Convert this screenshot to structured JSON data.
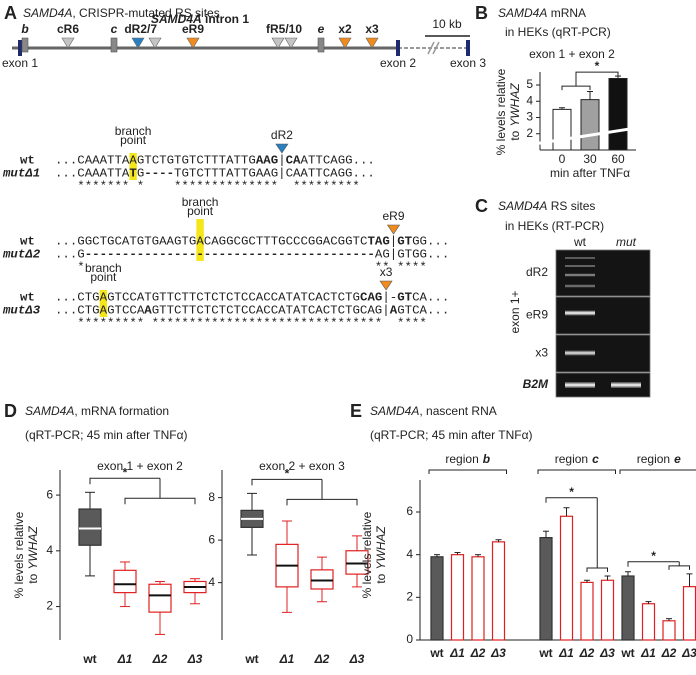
{
  "panel_a": {
    "letter": "A",
    "title_gene": "SAMD4A",
    "title_rest": ", CRISPR-mutated RS sites",
    "intron_gene": "SAMD4A",
    "intron_rest": " intron 1",
    "scale": "10 kb",
    "exons": [
      "exon 1",
      "exon 2",
      "exon 3"
    ],
    "sites": [
      {
        "label": "b",
        "color": "#888888",
        "label_color": "#222222"
      },
      {
        "label": "cR6",
        "color": "#c4c4c4",
        "label_color": "#a8a8a8"
      },
      {
        "label": "c",
        "color": "#888888",
        "label_color": "#222222"
      },
      {
        "label": "dR2",
        "color": "#2a7fc0",
        "label_color": "#222222"
      },
      {
        "label": "/7",
        "color": "#c4c4c4",
        "label_color": "#a8a8a8"
      },
      {
        "label": "eR9",
        "color": "#f08c1e",
        "label_color": "#222222"
      },
      {
        "label": "fR5/10",
        "color": "#c4c4c4",
        "label_color": "#a8a8a8"
      },
      {
        "label": "e",
        "color": "#888888",
        "label_color": "#222222"
      },
      {
        "label": "x2",
        "color": "#f08c1e",
        "label_color": "#222222"
      },
      {
        "label": "x3",
        "color": "#f08c1e",
        "label_color": "#222222"
      }
    ],
    "alignments": [
      {
        "site": "dR2",
        "site_color": "#2a7fc0",
        "branch": [
          "branch",
          "point"
        ],
        "wt_label": "wt",
        "mut_label": "mutΔ1",
        "wt": [
          {
            "text": "...CAAATTA"
          },
          {
            "text": "A",
            "highlight": true
          },
          {
            "text": "GTCTGTGTCTTTATTG"
          },
          {
            "text": "AAG",
            "color": "#e0208f"
          },
          {
            "text": "|"
          },
          {
            "text": "CA",
            "color": "#1aa0d8"
          },
          {
            "text": "ATTCAGG..."
          }
        ],
        "mut": [
          {
            "text": "...CAAATTA"
          },
          {
            "text": "T",
            "highlight": true,
            "color": "#e02020"
          },
          {
            "text": "G"
          },
          {
            "text": "----",
            "color": "#e02020"
          },
          {
            "text": "TGTCTTTATTGAAG|CAATTCAGG..."
          }
        ],
        "stars": "   ******* *    **************  *********"
      },
      {
        "site": "eR9",
        "site_color": "#f08c1e",
        "branch": [
          "branch",
          "point"
        ],
        "wt_label": "wt",
        "mut_label": "mutΔ2",
        "wt": [
          {
            "text": "...GGCTGCATGTGAAGTG"
          },
          {
            "text": "A",
            "highlight": true
          },
          {
            "text": "CAGGCGCTTTGCCCGGACGGTC"
          },
          {
            "text": "TAG",
            "color": "#e0208f"
          },
          {
            "text": "|"
          },
          {
            "text": "GT",
            "color": "#f08c1e"
          },
          {
            "text": "GG..."
          }
        ],
        "mut": [
          {
            "text": "...G"
          },
          {
            "text": "---------------",
            "color": "#e02020"
          },
          {
            "text": "-",
            "highlight": true,
            "color": "#e02020"
          },
          {
            "text": "-----------------------",
            "color": "#e02020"
          },
          {
            "text": "AG|GTGG..."
          }
        ],
        "stars": "   *                                       ** ****"
      },
      {
        "site": "x3",
        "site_color": "#f08c1e",
        "branch": [
          "branch",
          "point"
        ],
        "wt_label": "wt",
        "mut_label": "mutΔ3",
        "wt": [
          {
            "text": "...CTG"
          },
          {
            "text": "A",
            "highlight": true
          },
          {
            "text": "GTCCATGTTCTTCTCTCTCCACCATATCACTCTG"
          },
          {
            "text": "CAG",
            "color": "#e0208f"
          },
          {
            "text": "|"
          },
          {
            "text": "-"
          },
          {
            "text": "GT",
            "color": "#f08c1e"
          },
          {
            "text": "CA..."
          }
        ],
        "mut": [
          {
            "text": "...CTG"
          },
          {
            "text": "A",
            "highlight": true
          },
          {
            "text": "GTCCA"
          },
          {
            "text": "A",
            "color": "#e02020"
          },
          {
            "text": "GTTCTTCTCTCTCCACCATATCACTCTGCAG|"
          },
          {
            "text": "A",
            "color": "#e02020"
          },
          {
            "text": "GTCA..."
          }
        ],
        "stars": "   ********* *******************************  ****"
      }
    ]
  },
  "panel_c": {
    "letter": "C",
    "title_gene": "SAMD4A",
    "title_1": " RS sites",
    "title_2": "in HEKs (RT-PCR)",
    "lanes": [
      "wt",
      "mut"
    ],
    "rows": [
      "dR2",
      "eR9",
      "x3",
      "B2M"
    ],
    "side_label": "exon 1+"
  },
  "chart_data": [
    {
      "type": "bar",
      "letter": "B",
      "title_gene": "SAMD4A",
      "title_1": " mRNA",
      "title_2": "in HEKs (qRT-PCR)",
      "subtitle": "exon 1 + exon 2",
      "ylabel": [
        "% levels relative",
        "to",
        "YWHAZ"
      ],
      "xlabel": "min after TNFα",
      "categories": [
        "0",
        "30",
        "60"
      ],
      "values": [
        3.5,
        4.1,
        5.4
      ],
      "errors": [
        0.1,
        0.5,
        0.15
      ],
      "colors": [
        "#ffffff",
        "#a0a0a0",
        "#111111"
      ],
      "ylim": [
        1,
        5.8
      ],
      "yticks": [
        2,
        3,
        4,
        5
      ],
      "annotation": "*"
    },
    {
      "type": "box",
      "letter": "D",
      "title_gene": "SAMD4A",
      "title_1": ", mRNA formation",
      "title_2": "(qRT-PCR; 45 min after TNFα)",
      "subtitle": "exon 1 + exon 2",
      "ylabel": [
        "% levels relative",
        "to",
        "YWHAZ"
      ],
      "categories": [
        "wt",
        "Δ1",
        "Δ2",
        "Δ3"
      ],
      "boxes": [
        [
          3.1,
          4.2,
          4.8,
          5.5,
          6.1
        ],
        [
          2.0,
          2.5,
          2.8,
          3.3,
          3.6
        ],
        [
          1.0,
          1.8,
          2.4,
          2.8,
          2.9
        ],
        [
          2.1,
          2.5,
          2.7,
          2.9,
          3.0
        ]
      ],
      "colors": [
        "#5a5a5a",
        "#e02020",
        "#e02020",
        "#e02020"
      ],
      "filled": [
        true,
        false,
        false,
        false
      ],
      "median_colors": [
        "#ffffff",
        "#111111",
        "#111111",
        "#111111"
      ],
      "ylim": [
        0.8,
        6.9
      ],
      "yticks": [
        2,
        4,
        6
      ],
      "annotation": "*"
    },
    {
      "type": "box",
      "subtitle": "exon 2 + exon 3",
      "categories": [
        "wt",
        "Δ1",
        "Δ2",
        "Δ3"
      ],
      "boxes": [
        [
          5.3,
          6.6,
          7.0,
          7.4,
          8.2
        ],
        [
          2.6,
          3.8,
          4.8,
          5.8,
          6.9
        ],
        [
          3.1,
          3.7,
          4.1,
          4.6,
          5.2
        ],
        [
          3.8,
          4.4,
          4.9,
          5.5,
          6.2
        ]
      ],
      "colors": [
        "#5a5a5a",
        "#e02020",
        "#e02020",
        "#e02020"
      ],
      "filled": [
        true,
        false,
        false,
        false
      ],
      "median_colors": [
        "#ffffff",
        "#111111",
        "#111111",
        "#111111"
      ],
      "ylim": [
        1.3,
        9.3
      ],
      "yticks": [
        4,
        6,
        8
      ],
      "annotation": "*"
    },
    {
      "type": "grouped_bar",
      "letter": "E",
      "title_gene": "SAMD4A",
      "title_1": ", nascent RNA",
      "title_2": "(qRT-PCR; 45 min after TNFα)",
      "ylabel": [
        "% levels relative",
        "to",
        "YWHAZ"
      ],
      "categories": [
        "wt",
        "Δ1",
        "Δ2",
        "Δ3"
      ],
      "colors": [
        "#5a5a5a",
        "#e02020",
        "#e02020",
        "#e02020"
      ],
      "filled": [
        true,
        false,
        false,
        false
      ],
      "groups": [
        {
          "label": "region",
          "id": "b",
          "values": [
            3.9,
            4.0,
            3.9,
            4.6
          ],
          "errors": [
            0.1,
            0.1,
            0.1,
            0.1
          ]
        },
        {
          "label": "region",
          "id": "c",
          "values": [
            4.8,
            5.8,
            2.7,
            2.8
          ],
          "errors": [
            0.3,
            0.4,
            0.1,
            0.2
          ],
          "annotation": "*"
        },
        {
          "label": "region",
          "id": "e",
          "values": [
            3.0,
            1.7,
            0.9,
            2.5
          ],
          "errors": [
            0.2,
            0.1,
            0.1,
            0.6
          ],
          "annotation": "*"
        }
      ],
      "ylim": [
        0,
        7.5
      ],
      "yticks": [
        0,
        2,
        4,
        6
      ]
    }
  ]
}
